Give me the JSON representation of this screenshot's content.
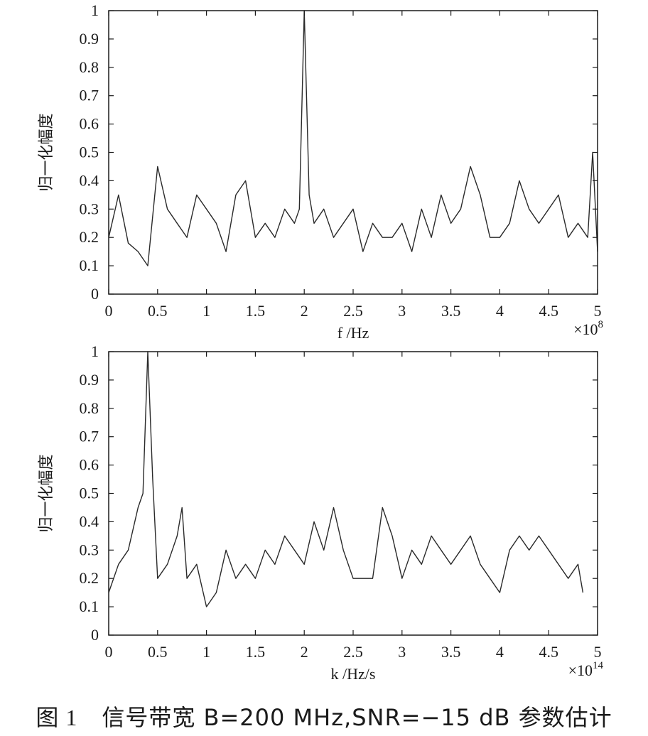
{
  "caption": {
    "figure_number": "图 1",
    "text": "信号带宽 B=200 MHz,SNR=−15 dB 参数估计"
  },
  "colors": {
    "axis": "#1a1a1a",
    "line": "#2a2a2a"
  },
  "chart_data": [
    {
      "type": "line",
      "ylabel": "归一化幅度",
      "xlabel": "f /Hz",
      "x_multiplier": "×10^8",
      "x_multiplier_base": "×10",
      "x_multiplier_exp": "8",
      "xlim": [
        0,
        5
      ],
      "ylim": [
        0,
        1
      ],
      "xticks": [
        "0",
        "0.5",
        "1",
        "1.5",
        "2",
        "2.5",
        "3",
        "3.5",
        "4",
        "4.5",
        "5"
      ],
      "yticks": [
        "0",
        "0.1",
        "0.2",
        "0.3",
        "0.4",
        "0.5",
        "0.6",
        "0.7",
        "0.8",
        "0.9",
        "1"
      ],
      "grid": false,
      "series": [
        {
          "x": [
            0,
            0.1,
            0.2,
            0.3,
            0.4,
            0.5,
            0.6,
            0.7,
            0.8,
            0.9,
            1,
            1.1,
            1.2,
            1.3,
            1.4,
            1.5,
            1.6,
            1.7,
            1.8,
            1.9,
            1.95,
            2,
            2.05,
            2.1,
            2.2,
            2.3,
            2.4,
            2.5,
            2.6,
            2.7,
            2.8,
            2.9,
            3,
            3.1,
            3.2,
            3.3,
            3.4,
            3.5,
            3.6,
            3.7,
            3.8,
            3.9,
            4,
            4.1,
            4.2,
            4.3,
            4.4,
            4.5,
            4.6,
            4.7,
            4.8,
            4.9,
            4.95,
            5
          ],
          "y": [
            0.2,
            0.35,
            0.18,
            0.15,
            0.1,
            0.45,
            0.3,
            0.25,
            0.2,
            0.35,
            0.3,
            0.25,
            0.15,
            0.35,
            0.4,
            0.2,
            0.25,
            0.2,
            0.3,
            0.25,
            0.3,
            1.0,
            0.35,
            0.25,
            0.3,
            0.2,
            0.25,
            0.3,
            0.15,
            0.25,
            0.2,
            0.2,
            0.25,
            0.15,
            0.3,
            0.2,
            0.35,
            0.25,
            0.3,
            0.45,
            0.35,
            0.2,
            0.2,
            0.25,
            0.4,
            0.3,
            0.25,
            0.3,
            0.35,
            0.2,
            0.25,
            0.2,
            0.5,
            0.15
          ]
        }
      ]
    },
    {
      "type": "line",
      "ylabel": "归一化幅度",
      "xlabel": "k /Hz/s",
      "x_multiplier": "×10^14",
      "x_multiplier_base": "×10",
      "x_multiplier_exp": "14",
      "xlim": [
        0,
        5
      ],
      "ylim": [
        0,
        1
      ],
      "xticks": [
        "0",
        "0.5",
        "1",
        "1.5",
        "2",
        "2.5",
        "3",
        "3.5",
        "4",
        "4.5",
        "5"
      ],
      "yticks": [
        "0",
        "0.1",
        "0.2",
        "0.3",
        "0.4",
        "0.5",
        "0.6",
        "0.7",
        "0.8",
        "0.9",
        "1"
      ],
      "grid": false,
      "series": [
        {
          "x": [
            0,
            0.1,
            0.2,
            0.3,
            0.35,
            0.4,
            0.45,
            0.5,
            0.6,
            0.7,
            0.75,
            0.8,
            0.9,
            1,
            1.1,
            1.2,
            1.3,
            1.4,
            1.5,
            1.6,
            1.7,
            1.8,
            1.9,
            2,
            2.1,
            2.2,
            2.3,
            2.4,
            2.5,
            2.6,
            2.7,
            2.8,
            2.9,
            3,
            3.1,
            3.2,
            3.3,
            3.4,
            3.5,
            3.6,
            3.7,
            3.8,
            3.9,
            4,
            4.1,
            4.2,
            4.3,
            4.4,
            4.5,
            4.6,
            4.7,
            4.8,
            4.85
          ],
          "y": [
            0.15,
            0.25,
            0.3,
            0.45,
            0.5,
            1.0,
            0.55,
            0.2,
            0.25,
            0.35,
            0.45,
            0.2,
            0.25,
            0.1,
            0.15,
            0.3,
            0.2,
            0.25,
            0.2,
            0.3,
            0.25,
            0.35,
            0.3,
            0.25,
            0.4,
            0.3,
            0.45,
            0.3,
            0.2,
            0.2,
            0.2,
            0.45,
            0.35,
            0.2,
            0.3,
            0.25,
            0.35,
            0.3,
            0.25,
            0.3,
            0.35,
            0.25,
            0.2,
            0.15,
            0.3,
            0.35,
            0.3,
            0.35,
            0.3,
            0.25,
            0.2,
            0.25,
            0.15
          ]
        }
      ]
    }
  ]
}
